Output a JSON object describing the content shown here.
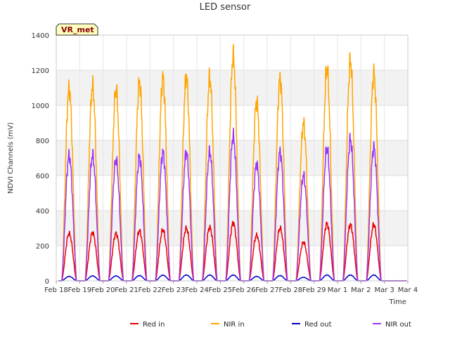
{
  "chart_data": {
    "type": "line",
    "title": "LED sensor",
    "xlabel": "Time",
    "ylabel": "NDVI Channels (mV)",
    "ylim": [
      0,
      1400
    ],
    "yticks": [
      0,
      200,
      400,
      600,
      800,
      1000,
      1200,
      1400
    ],
    "xlim": [
      0,
      15
    ],
    "xticks": [
      {
        "value": 0,
        "label": "Feb 18"
      },
      {
        "value": 1,
        "label": "Feb 19"
      },
      {
        "value": 2,
        "label": "Feb 20"
      },
      {
        "value": 3,
        "label": "Feb 21"
      },
      {
        "value": 4,
        "label": "Feb 22"
      },
      {
        "value": 5,
        "label": "Feb 23"
      },
      {
        "value": 6,
        "label": "Feb 24"
      },
      {
        "value": 7,
        "label": "Feb 25"
      },
      {
        "value": 8,
        "label": "Feb 26"
      },
      {
        "value": 9,
        "label": "Feb 27"
      },
      {
        "value": 10,
        "label": "Feb 28"
      },
      {
        "value": 11,
        "label": "Feb 29"
      },
      {
        "value": 12,
        "label": "Mar 1"
      },
      {
        "value": 13,
        "label": "Mar 2"
      },
      {
        "value": 14,
        "label": "Mar 3"
      },
      {
        "value": 15,
        "label": "Mar 4"
      }
    ],
    "grid": true,
    "badge": "VR_met",
    "day_centers": [
      0.55,
      1.55,
      2.55,
      3.55,
      4.55,
      5.55,
      6.55,
      7.55,
      8.55,
      9.55,
      10.55,
      11.55,
      12.55,
      13.55,
      14.5
    ],
    "day_half_width": 0.32,
    "series": [
      {
        "name": "Red in",
        "color": "#ee0000",
        "daily_peaks": [
          270,
          275,
          270,
          285,
          290,
          300,
          305,
          330,
          260,
          300,
          220,
          325,
          320,
          320,
          0
        ]
      },
      {
        "name": "NIR in",
        "color": "#ffa500",
        "daily_peaks": [
          1095,
          1110,
          1090,
          1130,
          1155,
          1160,
          1155,
          1280,
          1020,
          1150,
          895,
          1210,
          1250,
          1180,
          0
        ]
      },
      {
        "name": "Red out",
        "color": "#0000cc",
        "daily_peaks": [
          25,
          28,
          28,
          30,
          32,
          33,
          33,
          33,
          25,
          30,
          20,
          33,
          33,
          33,
          0
        ]
      },
      {
        "name": "NIR out",
        "color": "#9933ff",
        "daily_peaks": [
          715,
          715,
          690,
          705,
          730,
          730,
          735,
          825,
          665,
          735,
          600,
          755,
          805,
          760,
          0
        ]
      }
    ]
  }
}
